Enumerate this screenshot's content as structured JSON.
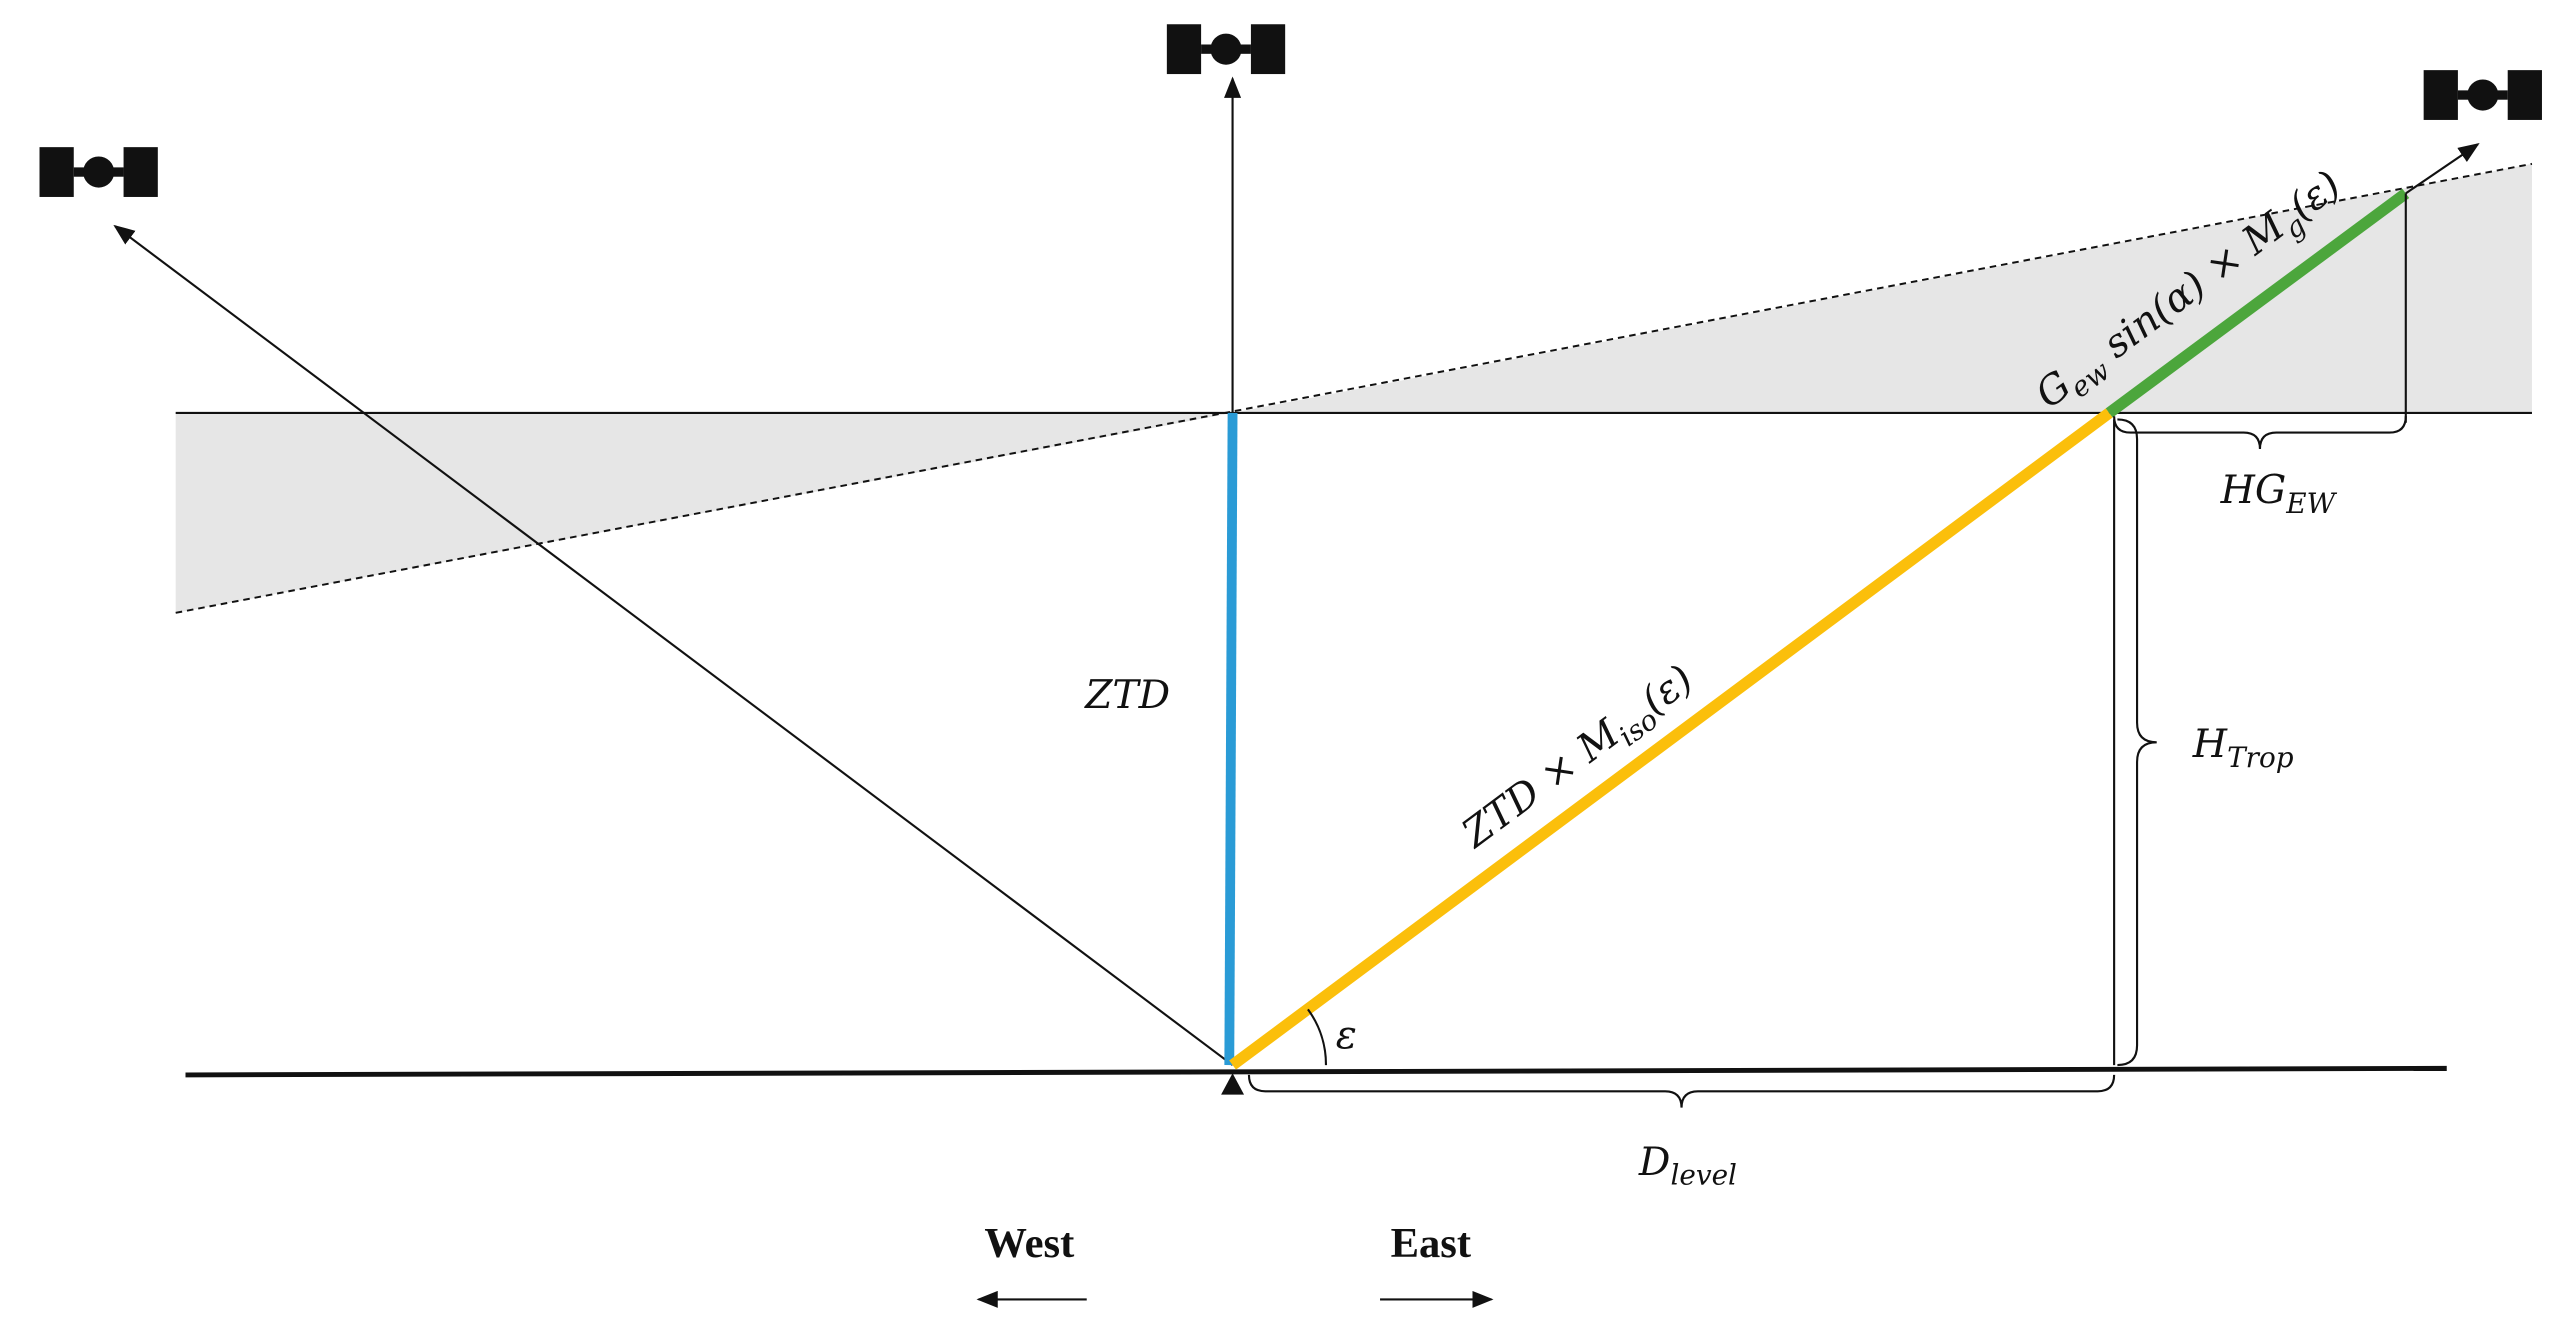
{
  "labels": {
    "ztd": "ZTD",
    "slant": {
      "base": "ZTD × M",
      "sub": "iso",
      "rest": "(ε)"
    },
    "gradient": {
      "g": "G",
      "gsub": "ew",
      "mid": " sin(α) × M",
      "msub": "g",
      "rest": "(ε)"
    },
    "hg": {
      "base": "HG",
      "sub": "EW"
    },
    "htrop": {
      "base": "H",
      "sub": "Trop"
    },
    "dlevel": {
      "base": "D",
      "sub": "level"
    },
    "epsilon": "ε"
  },
  "directions": {
    "west": "West",
    "east": "East"
  }
}
